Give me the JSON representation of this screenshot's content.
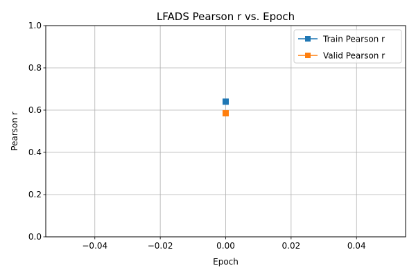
{
  "chart_data": {
    "type": "line",
    "title": "LFADS Pearson r vs. Epoch",
    "xlabel": "Epoch",
    "ylabel": "Pearson r",
    "xlim": [
      -0.055,
      0.055
    ],
    "ylim": [
      0.0,
      1.0
    ],
    "xticks": [
      -0.04,
      -0.02,
      0.0,
      0.02,
      0.04
    ],
    "xtick_labels": [
      "−0.04",
      "−0.02",
      "0.00",
      "0.02",
      "0.04"
    ],
    "yticks": [
      0.0,
      0.2,
      0.4,
      0.6,
      0.8,
      1.0
    ],
    "ytick_labels": [
      "0.0",
      "0.2",
      "0.4",
      "0.6",
      "0.8",
      "1.0"
    ],
    "grid": true,
    "legend_position": "top-right",
    "series": [
      {
        "name": "Train Pearson r",
        "color": "#1f77b4",
        "marker": "square",
        "x": [
          0
        ],
        "y": [
          0.64
        ]
      },
      {
        "name": "Valid Pearson r",
        "color": "#ff7f0e",
        "marker": "square",
        "x": [
          0
        ],
        "y": [
          0.585
        ]
      }
    ]
  }
}
